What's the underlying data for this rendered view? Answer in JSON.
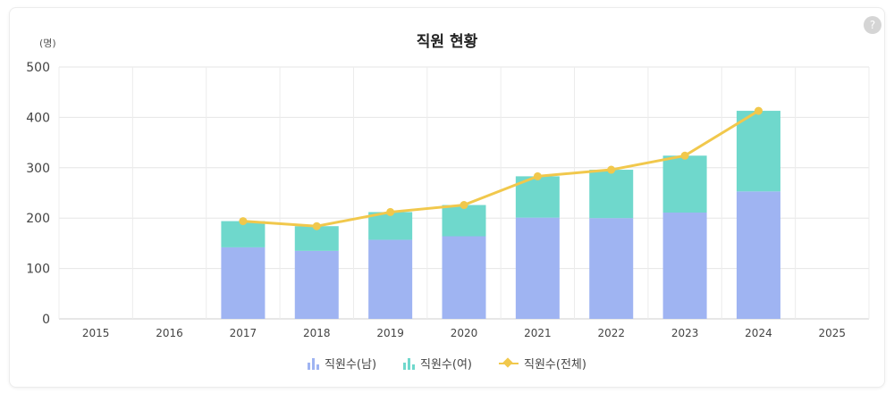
{
  "title": "직원 현황",
  "unit_label": "(명)",
  "info_icon": "info-icon",
  "chart_data": {
    "type": "bar",
    "stacked": true,
    "title": "직원 현황",
    "ylabel": "(명)",
    "xlabel": "",
    "ylim": [
      0,
      500
    ],
    "yticks": [
      0,
      100,
      200,
      300,
      400,
      500
    ],
    "grid": true,
    "legend_position": "bottom",
    "categories": [
      "2015",
      "2016",
      "2017",
      "2018",
      "2019",
      "2020",
      "2021",
      "2022",
      "2023",
      "2024",
      "2025"
    ],
    "series": [
      {
        "name": "직원수(남)",
        "kind": "bar",
        "color": "#9fb4f2",
        "values": [
          null,
          null,
          142,
          135,
          157,
          164,
          201,
          200,
          211,
          253,
          null
        ]
      },
      {
        "name": "직원수(여)",
        "kind": "bar",
        "color": "#6fd8cc",
        "values": [
          null,
          null,
          52,
          49,
          55,
          62,
          82,
          96,
          113,
          160,
          null
        ]
      },
      {
        "name": "직원수(전체)",
        "kind": "line",
        "color": "#f1c84c",
        "values": [
          null,
          null,
          194,
          184,
          212,
          226,
          283,
          296,
          324,
          413,
          null
        ]
      }
    ]
  }
}
